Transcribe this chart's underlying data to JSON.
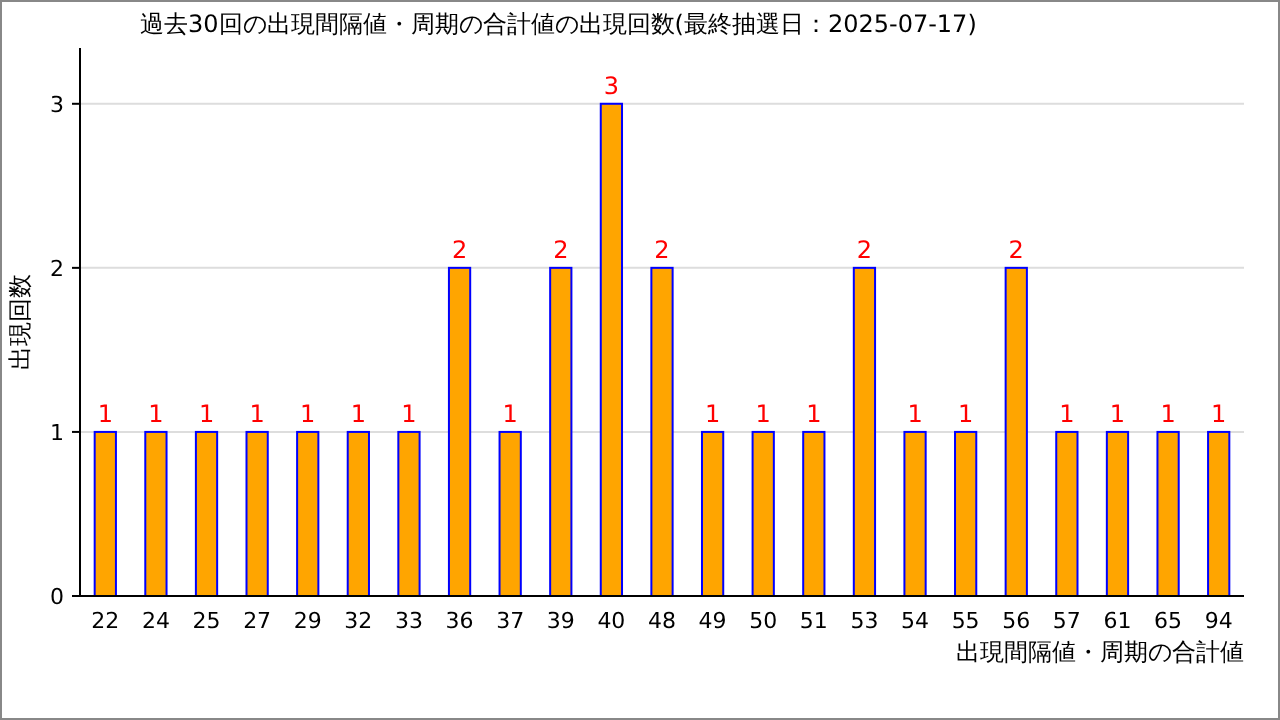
{
  "chart_data": {
    "type": "bar",
    "title": "過去30回の出現間隔値・周期の合計値の出現回数(最終抽選日：2025-07-17)",
    "xlabel": "出現間隔値・周期の合計値",
    "ylabel": "出現回数",
    "categories": [
      "22",
      "24",
      "25",
      "27",
      "29",
      "32",
      "33",
      "36",
      "37",
      "39",
      "40",
      "48",
      "49",
      "50",
      "51",
      "53",
      "54",
      "55",
      "56",
      "57",
      "61",
      "65",
      "94"
    ],
    "values": [
      1,
      1,
      1,
      1,
      1,
      1,
      1,
      2,
      1,
      2,
      3,
      2,
      1,
      1,
      1,
      2,
      1,
      1,
      2,
      1,
      1,
      1,
      1
    ],
    "color": "#ffa500",
    "ylim": [
      0,
      3.34
    ],
    "yticks": [
      0,
      1,
      2,
      3
    ],
    "grid": "y",
    "data_labels": true
  }
}
